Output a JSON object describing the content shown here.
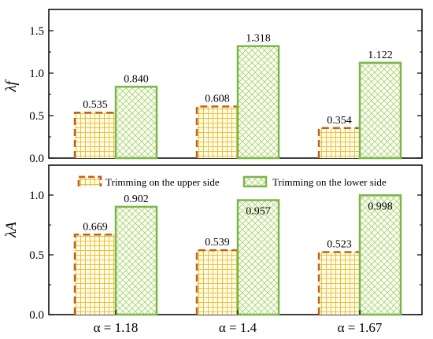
{
  "chart_data": [
    {
      "type": "bar",
      "ylabel": "λf",
      "ylim": [
        0,
        1.75
      ],
      "yticks": [
        "0.0",
        "0.5",
        "1.0",
        "1.5"
      ],
      "categories": [
        "α = 1.18",
        "α = 1.4",
        "α = 1.67"
      ],
      "series": [
        {
          "name": "Trimming on the upper side",
          "values": [
            0.535,
            0.608,
            0.354
          ],
          "labels": [
            "0.535",
            "0.608",
            "0.354"
          ]
        },
        {
          "name": "Trimming on the lower side",
          "values": [
            0.84,
            1.318,
            1.122
          ],
          "labels": [
            "0.840",
            "1.318",
            "1.122"
          ]
        }
      ]
    },
    {
      "type": "bar",
      "ylabel": "λA",
      "ylim": [
        0,
        1.25
      ],
      "yticks": [
        "0.0",
        "0.5",
        "1.0"
      ],
      "categories": [
        "α = 1.18",
        "α = 1.4",
        "α = 1.67"
      ],
      "series": [
        {
          "name": "Trimming on the upper side",
          "values": [
            0.669,
            0.539,
            0.523
          ],
          "labels": [
            "0.669",
            "0.539",
            "0.523"
          ]
        },
        {
          "name": "Trimming on the lower side",
          "values": [
            0.902,
            0.957,
            0.998
          ],
          "labels": [
            "0.902",
            "0.957",
            "0.998"
          ]
        }
      ],
      "legend": {
        "position": "top",
        "items": [
          "Trimming on the upper side",
          "Trimming on the lower side"
        ]
      }
    }
  ],
  "colors": {
    "upper_edge": "#c0631a",
    "upper_grid": "#f0c030",
    "lower_edge": "#7ab648",
    "lower_grid": "#a8d070"
  }
}
